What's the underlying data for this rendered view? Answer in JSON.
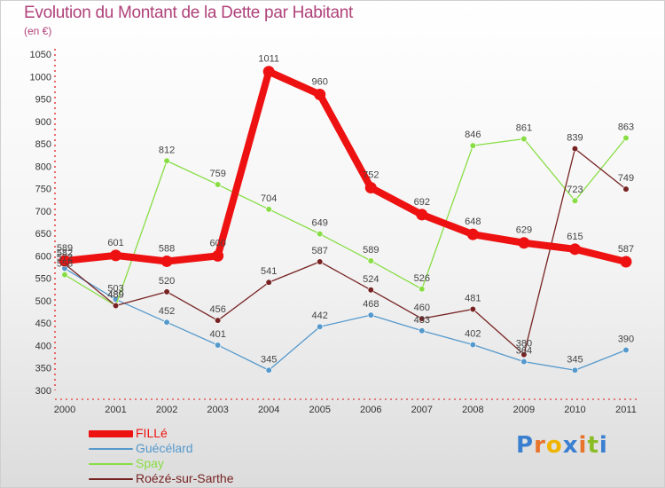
{
  "title": "Evolution du Montant de la Dette par Habitant",
  "unit": "(en €)",
  "logo": "Proxiti",
  "colors": {
    "title": "#b0427a",
    "logo": [
      "#3a7fd0",
      "#e8732a",
      "#f0b400",
      "#3a7fd0",
      "#e8732a",
      "#8abd24",
      "#3a7fd0"
    ]
  },
  "chart_data": {
    "type": "line",
    "categories": [
      "2000",
      "2001",
      "2002",
      "2003",
      "2004",
      "2005",
      "2006",
      "2007",
      "2008",
      "2009",
      "2010",
      "2011"
    ],
    "ylim": [
      300,
      1050
    ],
    "yticks": [
      300,
      350,
      400,
      450,
      500,
      550,
      600,
      650,
      700,
      750,
      800,
      850,
      900,
      950,
      1000,
      1050
    ],
    "grid": false,
    "legend_position": "bottom-left",
    "series": [
      {
        "name": "FILLé",
        "color": "#ee1111",
        "values": [
          589,
          601,
          588,
          600,
          1011,
          960,
          752,
          692,
          648,
          629,
          615,
          587
        ],
        "labels": [
          "589",
          "601",
          "588",
          "600",
          "1011",
          "960",
          "752",
          "692",
          "648",
          "629",
          "615",
          "587"
        ]
      },
      {
        "name": "Guécélard",
        "color": "#5599cc",
        "values": [
          572,
          503,
          452,
          401,
          345,
          442,
          468,
          433,
          402,
          364,
          345,
          390
        ],
        "labels": [
          "572",
          "503",
          "452",
          "401",
          "345",
          "442",
          "468",
          "433",
          "402",
          "364",
          "345",
          "390"
        ]
      },
      {
        "name": "Spay",
        "color": "#88dd44",
        "values": [
          558,
          489,
          812,
          759,
          704,
          649,
          589,
          526,
          846,
          861,
          723,
          863
        ],
        "labels": [
          "558",
          "489",
          "812",
          "759",
          "704",
          "649",
          "589",
          "526",
          "846",
          "861",
          "723",
          "863"
        ]
      },
      {
        "name": "Roézé-sur-Sarthe",
        "color": "#772222",
        "values": [
          582,
          489,
          520,
          456,
          541,
          587,
          524,
          460,
          481,
          380,
          839,
          749
        ],
        "labels": [
          "582",
          "489",
          "520",
          "456",
          "541",
          "587",
          "524",
          "460",
          "481",
          "380",
          "839",
          "749"
        ]
      }
    ]
  }
}
